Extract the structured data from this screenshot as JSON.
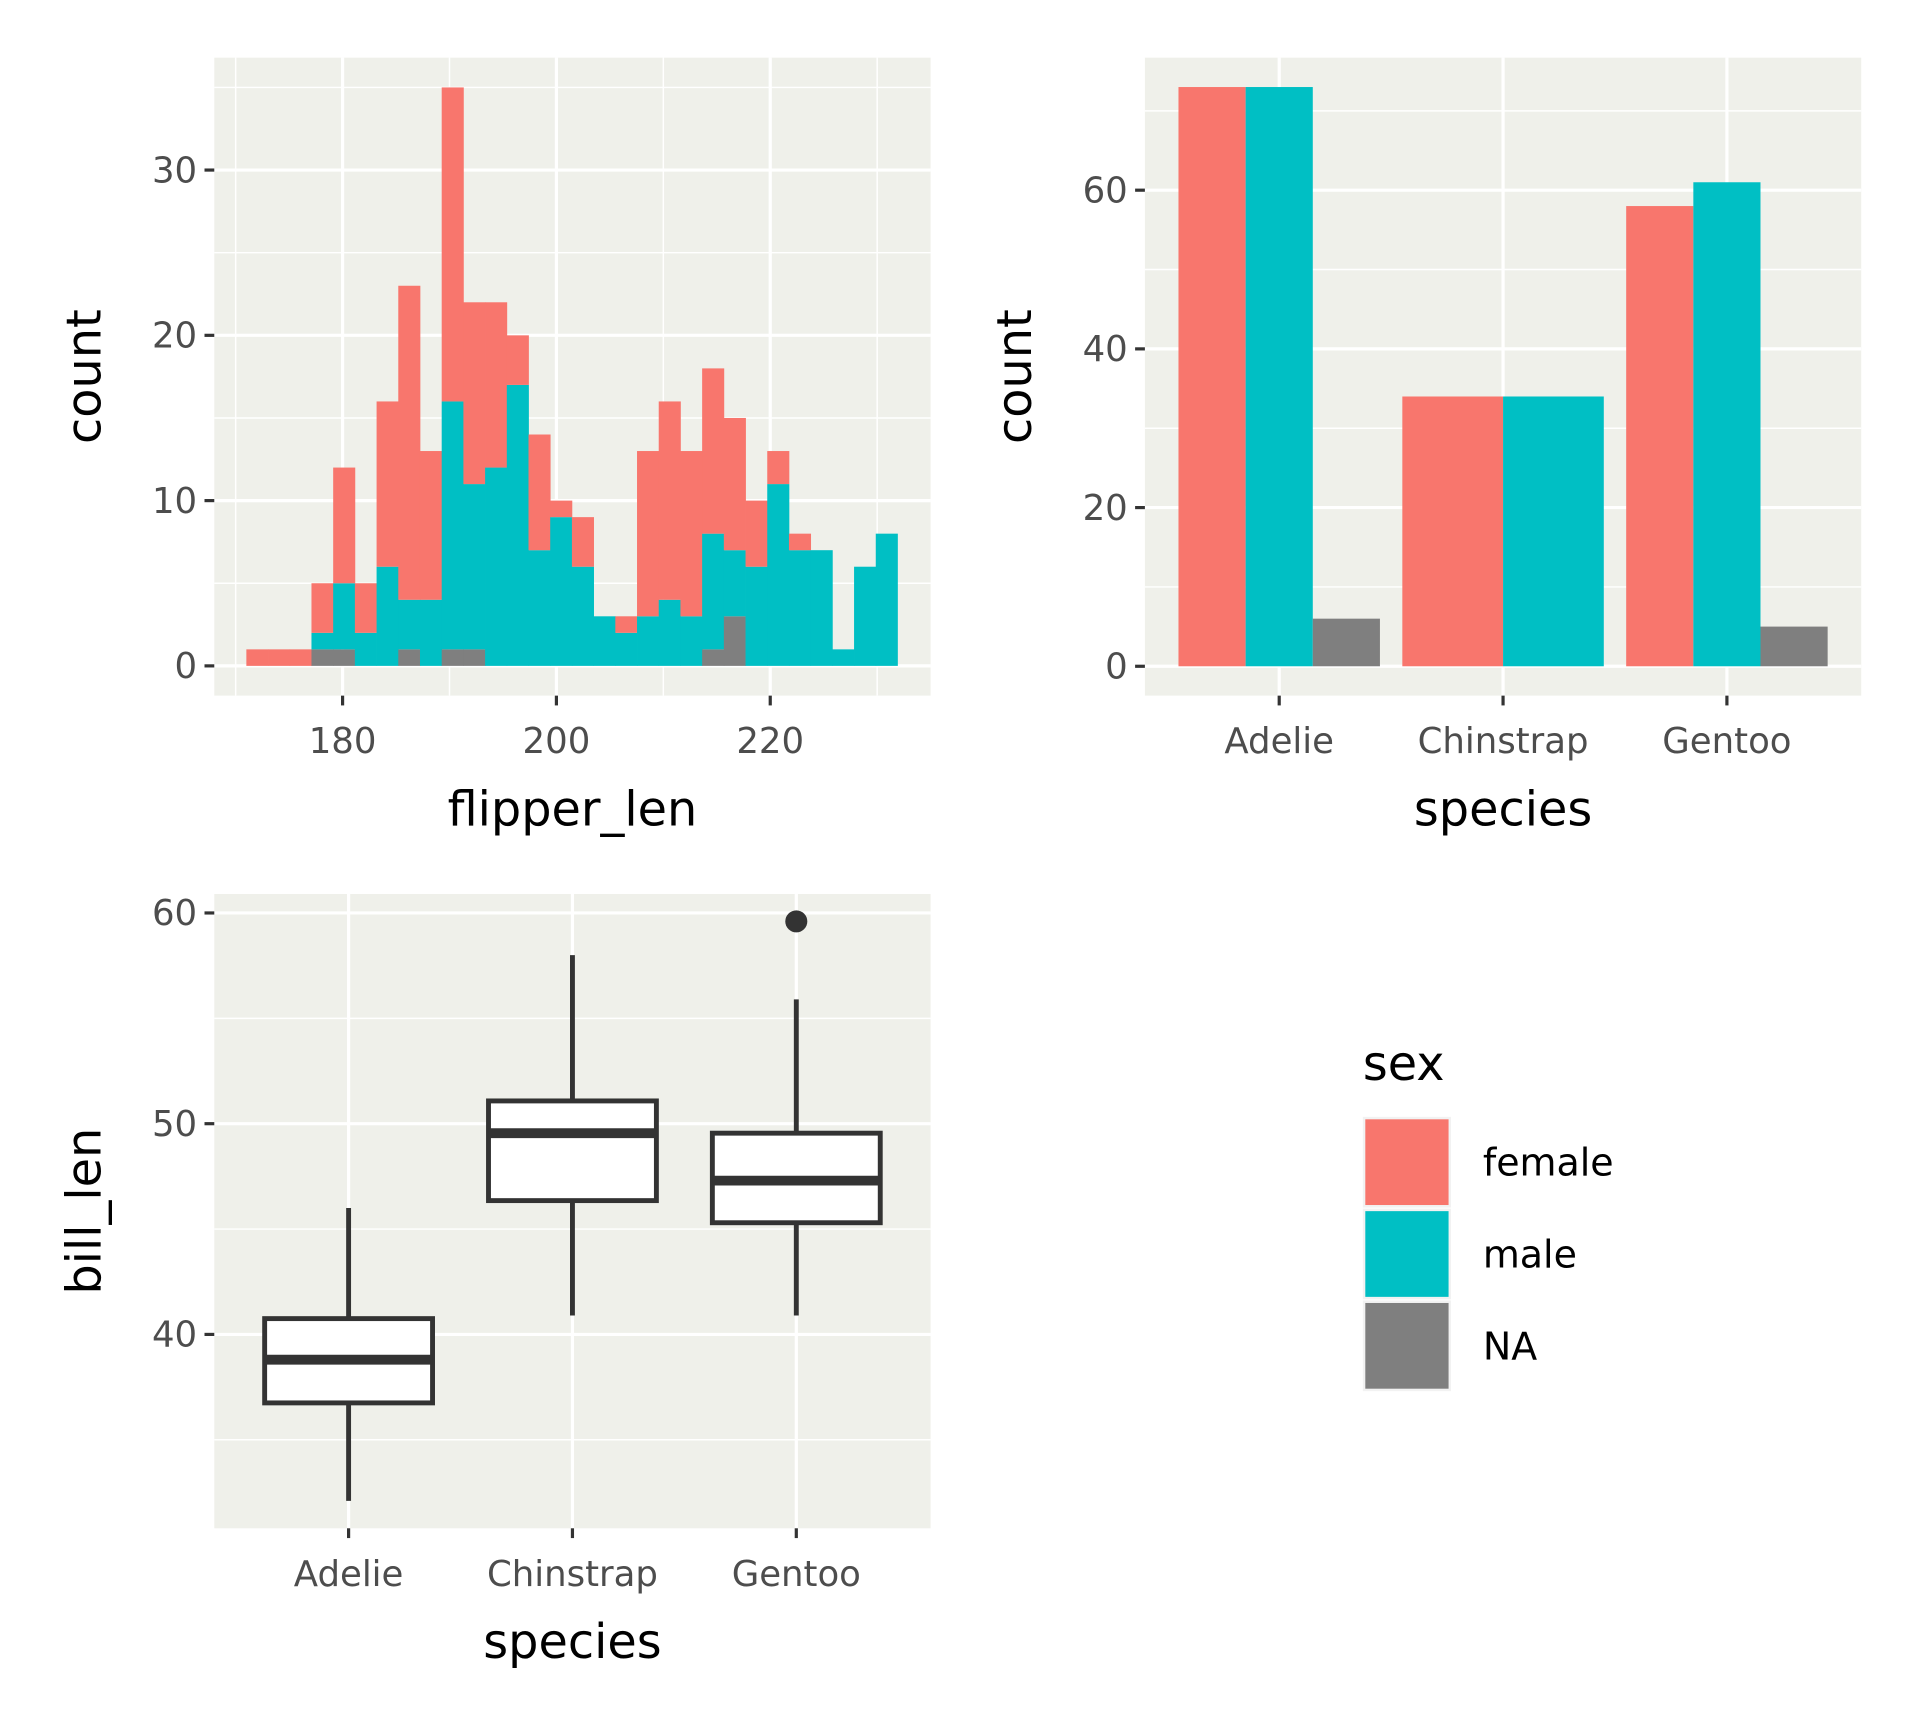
{
  "colors": {
    "female": "#F8766D",
    "male": "#00BFC4",
    "NA": "#7F7F7F",
    "panel": "#EFF0EA",
    "grid": "#FFFFFF",
    "box_line": "#333333"
  },
  "chart_data": [
    {
      "type": "bar",
      "subtype": "stacked-histogram",
      "xlabel": "flipper_len",
      "ylabel": "count",
      "xlim": [
        168,
        235
      ],
      "ylim": [
        -1.8,
        36.8
      ],
      "xticks": [
        180,
        200,
        220
      ],
      "yticks": [
        0,
        10,
        20,
        30
      ],
      "bin_start": 171,
      "binwidth": 2.03,
      "series": [
        {
          "name": "female",
          "values": [
            1,
            1,
            1,
            3,
            7,
            3,
            10,
            19,
            9,
            19,
            11,
            10,
            3,
            7,
            1,
            3,
            0,
            1,
            10,
            12,
            10,
            10,
            8,
            4,
            2,
            1,
            0,
            0,
            0,
            0
          ]
        },
        {
          "name": "male",
          "values": [
            0,
            0,
            0,
            1,
            4,
            2,
            6,
            3,
            4,
            15,
            10,
            12,
            17,
            7,
            9,
            6,
            3,
            2,
            3,
            4,
            3,
            7,
            4,
            6,
            11,
            7,
            7,
            1,
            6,
            8
          ]
        },
        {
          "name": "NA",
          "values": [
            0,
            0,
            0,
            1,
            1,
            0,
            0,
            1,
            0,
            1,
            1,
            0,
            0,
            0,
            0,
            0,
            0,
            0,
            0,
            0,
            0,
            1,
            3,
            0,
            0,
            0,
            0,
            0,
            0,
            0
          ]
        }
      ]
    },
    {
      "type": "bar",
      "subtype": "dodged",
      "xlabel": "species",
      "ylabel": "count",
      "categories": [
        "Adelie",
        "Chinstrap",
        "Gentoo"
      ],
      "ylim": [
        -3.7,
        76.7
      ],
      "yticks": [
        0,
        20,
        40,
        60
      ],
      "series": [
        {
          "name": "female",
          "values": [
            73,
            34,
            58
          ]
        },
        {
          "name": "male",
          "values": [
            73,
            34,
            61
          ]
        },
        {
          "name": "NA",
          "values": [
            6,
            null,
            5
          ]
        }
      ]
    },
    {
      "type": "boxplot",
      "xlabel": "species",
      "ylabel": "bill_len",
      "categories": [
        "Adelie",
        "Chinstrap",
        "Gentoo"
      ],
      "ylim": [
        30.8,
        60.9
      ],
      "yticks": [
        40,
        50,
        60
      ],
      "boxes": [
        {
          "whisker_low": 32.1,
          "q1": 36.75,
          "median": 38.8,
          "q3": 40.75,
          "whisker_high": 46.0,
          "outliers": []
        },
        {
          "whisker_low": 40.9,
          "q1": 46.35,
          "median": 49.55,
          "q3": 51.08,
          "whisker_high": 58.0,
          "outliers": []
        },
        {
          "whisker_low": 40.9,
          "q1": 45.3,
          "median": 47.3,
          "q3": 49.55,
          "whisker_high": 55.9,
          "outliers": [
            59.6
          ]
        }
      ]
    }
  ],
  "legend": {
    "title": "sex",
    "items": [
      "female",
      "male",
      "NA"
    ]
  }
}
